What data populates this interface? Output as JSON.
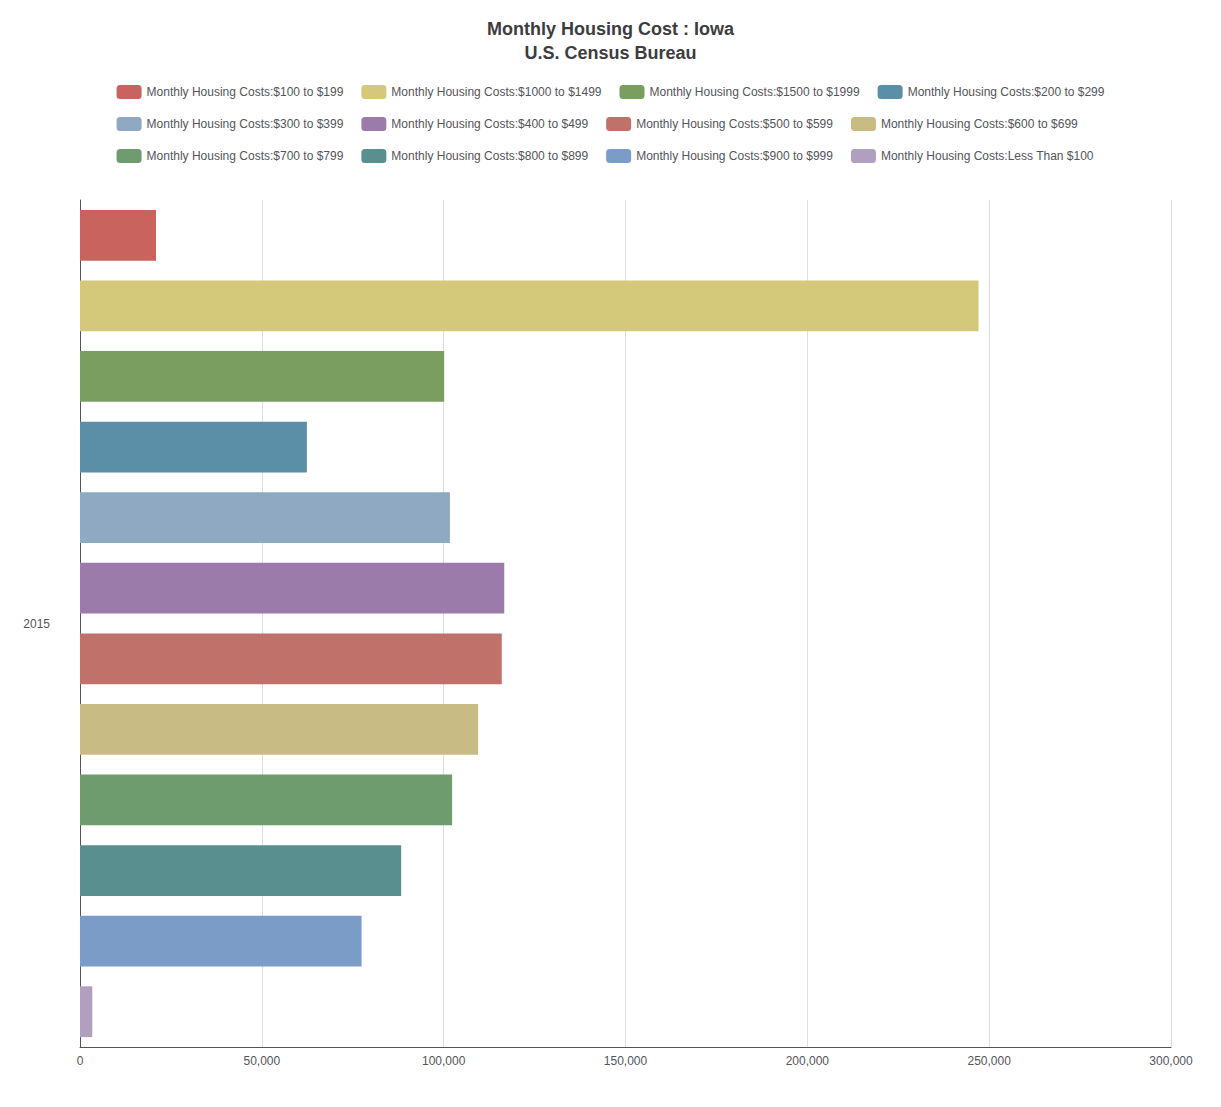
{
  "chart_data": {
    "type": "bar",
    "orientation": "horizontal",
    "title": "Monthly Housing Cost : Iowa\nU.S. Census Bureau",
    "ylabel": "2015",
    "categories": [
      "Monthly Housing Costs:$100 to $199",
      "Monthly Housing Costs:$1000 to $1499",
      "Monthly Housing Costs:$1500 to $1999",
      "Monthly Housing Costs:$200 to $299",
      "Monthly Housing Costs:$300 to $399",
      "Monthly Housing Costs:$400 to $499",
      "Monthly Housing Costs:$500 to $599",
      "Monthly Housing Costs:$600 to $699",
      "Monthly Housing Costs:$700 to $799",
      "Monthly Housing Costs:$800 to $899",
      "Monthly Housing Costs:$900 to $999",
      "Monthly Housing Costs:Less Than $100"
    ],
    "values": [
      20899,
      247068,
      100137,
      62395,
      101720,
      116661,
      115982,
      109477,
      102324,
      88324,
      77431,
      3381
    ],
    "colors": [
      "#c8635e",
      "#d4c87a",
      "#7a9e5f",
      "#5b8fa8",
      "#8ea9c1",
      "#9b7baa",
      "#c0726a",
      "#c8bc84",
      "#6e9c6e",
      "#5a8f8f",
      "#7b9cc7",
      "#b09fbf"
    ],
    "xlim": [
      0,
      300000
    ],
    "xticks": [
      0,
      {
        "value": 50000,
        "label": "50,000"
      },
      {
        "value": 100000,
        "label": "100,000"
      },
      {
        "value": 150000,
        "label": "150,000"
      },
      {
        "value": 200000,
        "label": "200,000"
      },
      {
        "value": 250000,
        "label": "250,000"
      },
      {
        "value": 300000,
        "label": "300,000"
      }
    ],
    "grid": true,
    "legend": "top",
    "tick_labels": "x"
  }
}
